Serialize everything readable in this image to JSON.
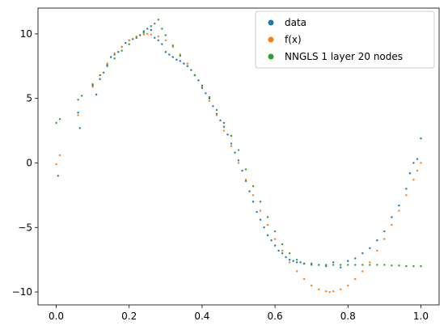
{
  "chart_data": {
    "type": "scatter",
    "xlim": [
      -0.05,
      1.05
    ],
    "ylim": [
      -11,
      12
    ],
    "x_ticks": [
      0.0,
      0.2,
      0.4,
      0.6,
      0.8,
      1.0
    ],
    "x_tick_labels": [
      "0.0",
      "0.2",
      "0.4",
      "0.6",
      "0.8",
      "1.0"
    ],
    "y_ticks": [
      -10,
      -5,
      0,
      5,
      10
    ],
    "y_tick_labels": [
      "−10",
      "−5",
      "0",
      "5",
      "10"
    ],
    "grid": false,
    "legend_position": "top-right",
    "series": [
      {
        "name": "data",
        "color": "#1f77b4",
        "points": [
          [
            0.005,
            -1.0
          ],
          [
            0.06,
            3.9
          ],
          [
            0.065,
            2.7
          ],
          [
            0.1,
            6.0
          ],
          [
            0.11,
            5.3
          ],
          [
            0.12,
            6.5
          ],
          [
            0.13,
            7.0
          ],
          [
            0.14,
            7.6
          ],
          [
            0.15,
            8.2
          ],
          [
            0.16,
            8.4
          ],
          [
            0.17,
            8.6
          ],
          [
            0.18,
            9.0
          ],
          [
            0.19,
            9.3
          ],
          [
            0.2,
            9.5
          ],
          [
            0.21,
            9.6
          ],
          [
            0.22,
            9.7
          ],
          [
            0.23,
            9.9
          ],
          [
            0.24,
            10.2
          ],
          [
            0.25,
            10.4
          ],
          [
            0.26,
            10.3
          ],
          [
            0.27,
            9.7
          ],
          [
            0.28,
            9.5
          ],
          [
            0.29,
            9.2
          ],
          [
            0.3,
            8.6
          ],
          [
            0.31,
            8.4
          ],
          [
            0.32,
            8.2
          ],
          [
            0.33,
            8.0
          ],
          [
            0.34,
            7.9
          ],
          [
            0.35,
            7.7
          ],
          [
            0.36,
            7.5
          ],
          [
            0.37,
            7.2
          ],
          [
            0.38,
            6.8
          ],
          [
            0.39,
            6.4
          ],
          [
            0.4,
            5.8
          ],
          [
            0.41,
            5.4
          ],
          [
            0.42,
            5.0
          ],
          [
            0.43,
            4.4
          ],
          [
            0.44,
            3.8
          ],
          [
            0.45,
            3.3
          ],
          [
            0.46,
            2.8
          ],
          [
            0.47,
            2.2
          ],
          [
            0.48,
            1.5
          ],
          [
            0.49,
            0.8
          ],
          [
            0.5,
            0.2
          ],
          [
            0.51,
            -0.6
          ],
          [
            0.52,
            -1.4
          ],
          [
            0.53,
            -2.2
          ],
          [
            0.54,
            -3.0
          ],
          [
            0.55,
            -3.8
          ],
          [
            0.56,
            -4.4
          ],
          [
            0.57,
            -5.0
          ],
          [
            0.58,
            -5.6
          ],
          [
            0.59,
            -6.0
          ],
          [
            0.6,
            -6.4
          ],
          [
            0.61,
            -6.8
          ],
          [
            0.62,
            -7.0
          ],
          [
            0.63,
            -7.3
          ],
          [
            0.64,
            -7.5
          ],
          [
            0.65,
            -7.6
          ],
          [
            0.66,
            -7.7
          ],
          [
            0.67,
            -7.7
          ],
          [
            0.68,
            -7.8
          ],
          [
            0.7,
            -7.8
          ],
          [
            0.72,
            -7.9
          ],
          [
            0.74,
            -8.0
          ],
          [
            0.76,
            -7.7
          ],
          [
            0.78,
            -8.1
          ],
          [
            0.8,
            -7.6
          ],
          [
            0.82,
            -7.4
          ],
          [
            0.84,
            -7.0
          ],
          [
            0.86,
            -6.6
          ],
          [
            0.88,
            -6.0
          ],
          [
            0.9,
            -5.3
          ],
          [
            0.92,
            -4.2
          ],
          [
            0.94,
            -3.3
          ],
          [
            0.96,
            -2.0
          ],
          [
            0.97,
            -0.8
          ],
          [
            0.98,
            0.0
          ],
          [
            0.99,
            0.3
          ],
          [
            1.0,
            1.9
          ]
        ]
      },
      {
        "name": "f(x)",
        "color": "#ff7f0e",
        "points": [
          [
            0.0,
            -0.1
          ],
          [
            0.01,
            0.6
          ],
          [
            0.06,
            3.7
          ],
          [
            0.1,
            5.9
          ],
          [
            0.12,
            6.8
          ],
          [
            0.14,
            7.7
          ],
          [
            0.16,
            8.5
          ],
          [
            0.18,
            9.0
          ],
          [
            0.2,
            9.5
          ],
          [
            0.22,
            9.8
          ],
          [
            0.24,
            9.95
          ],
          [
            0.25,
            10.0
          ],
          [
            0.26,
            9.95
          ],
          [
            0.28,
            9.8
          ],
          [
            0.3,
            9.5
          ],
          [
            0.32,
            9.0
          ],
          [
            0.34,
            8.4
          ],
          [
            0.36,
            7.7
          ],
          [
            0.38,
            6.8
          ],
          [
            0.4,
            5.9
          ],
          [
            0.42,
            4.8
          ],
          [
            0.44,
            3.7
          ],
          [
            0.46,
            2.5
          ],
          [
            0.48,
            1.3
          ],
          [
            0.5,
            0.0
          ],
          [
            0.52,
            -1.3
          ],
          [
            0.54,
            -2.5
          ],
          [
            0.56,
            -3.7
          ],
          [
            0.58,
            -4.8
          ],
          [
            0.6,
            -5.9
          ],
          [
            0.62,
            -6.8
          ],
          [
            0.64,
            -7.7
          ],
          [
            0.66,
            -8.4
          ],
          [
            0.68,
            -9.0
          ],
          [
            0.7,
            -9.5
          ],
          [
            0.72,
            -9.8
          ],
          [
            0.74,
            -9.95
          ],
          [
            0.75,
            -10.0
          ],
          [
            0.76,
            -9.95
          ],
          [
            0.78,
            -9.8
          ],
          [
            0.8,
            -9.5
          ],
          [
            0.82,
            -9.0
          ],
          [
            0.84,
            -8.4
          ],
          [
            0.86,
            -7.7
          ],
          [
            0.88,
            -6.8
          ],
          [
            0.9,
            -5.9
          ],
          [
            0.92,
            -4.8
          ],
          [
            0.94,
            -3.7
          ],
          [
            0.96,
            -2.5
          ],
          [
            0.98,
            -1.3
          ],
          [
            0.99,
            -0.6
          ],
          [
            1.0,
            0.0
          ]
        ]
      },
      {
        "name": "NNGLS 1 layer 20 nodes",
        "color": "#2ca02c",
        "points": [
          [
            0.0,
            3.1
          ],
          [
            0.01,
            3.4
          ],
          [
            0.06,
            4.9
          ],
          [
            0.07,
            5.2
          ],
          [
            0.1,
            6.1
          ],
          [
            0.12,
            6.8
          ],
          [
            0.14,
            7.5
          ],
          [
            0.16,
            8.1
          ],
          [
            0.18,
            8.7
          ],
          [
            0.2,
            9.2
          ],
          [
            0.22,
            9.7
          ],
          [
            0.24,
            10.1
          ],
          [
            0.26,
            10.6
          ],
          [
            0.27,
            10.8
          ],
          [
            0.28,
            11.1
          ],
          [
            0.29,
            10.4
          ],
          [
            0.3,
            9.9
          ],
          [
            0.32,
            9.1
          ],
          [
            0.34,
            8.3
          ],
          [
            0.36,
            7.5
          ],
          [
            0.38,
            6.8
          ],
          [
            0.4,
            6.0
          ],
          [
            0.42,
            5.1
          ],
          [
            0.44,
            4.1
          ],
          [
            0.46,
            3.1
          ],
          [
            0.48,
            2.1
          ],
          [
            0.5,
            1.0
          ],
          [
            0.52,
            -0.5
          ],
          [
            0.54,
            -1.8
          ],
          [
            0.56,
            -3.0
          ],
          [
            0.58,
            -4.2
          ],
          [
            0.6,
            -5.3
          ],
          [
            0.62,
            -6.3
          ],
          [
            0.64,
            -7.0
          ],
          [
            0.66,
            -7.5
          ],
          [
            0.68,
            -7.8
          ],
          [
            0.7,
            -7.9
          ],
          [
            0.72,
            -7.9
          ],
          [
            0.74,
            -7.9
          ],
          [
            0.76,
            -7.9
          ],
          [
            0.78,
            -7.9
          ],
          [
            0.8,
            -7.9
          ],
          [
            0.82,
            -7.9
          ],
          [
            0.84,
            -7.9
          ],
          [
            0.86,
            -7.9
          ],
          [
            0.88,
            -7.9
          ],
          [
            0.9,
            -7.9
          ],
          [
            0.92,
            -7.95
          ],
          [
            0.94,
            -7.95
          ],
          [
            0.96,
            -8.0
          ],
          [
            0.98,
            -8.0
          ],
          [
            1.0,
            -8.0
          ]
        ]
      }
    ]
  }
}
